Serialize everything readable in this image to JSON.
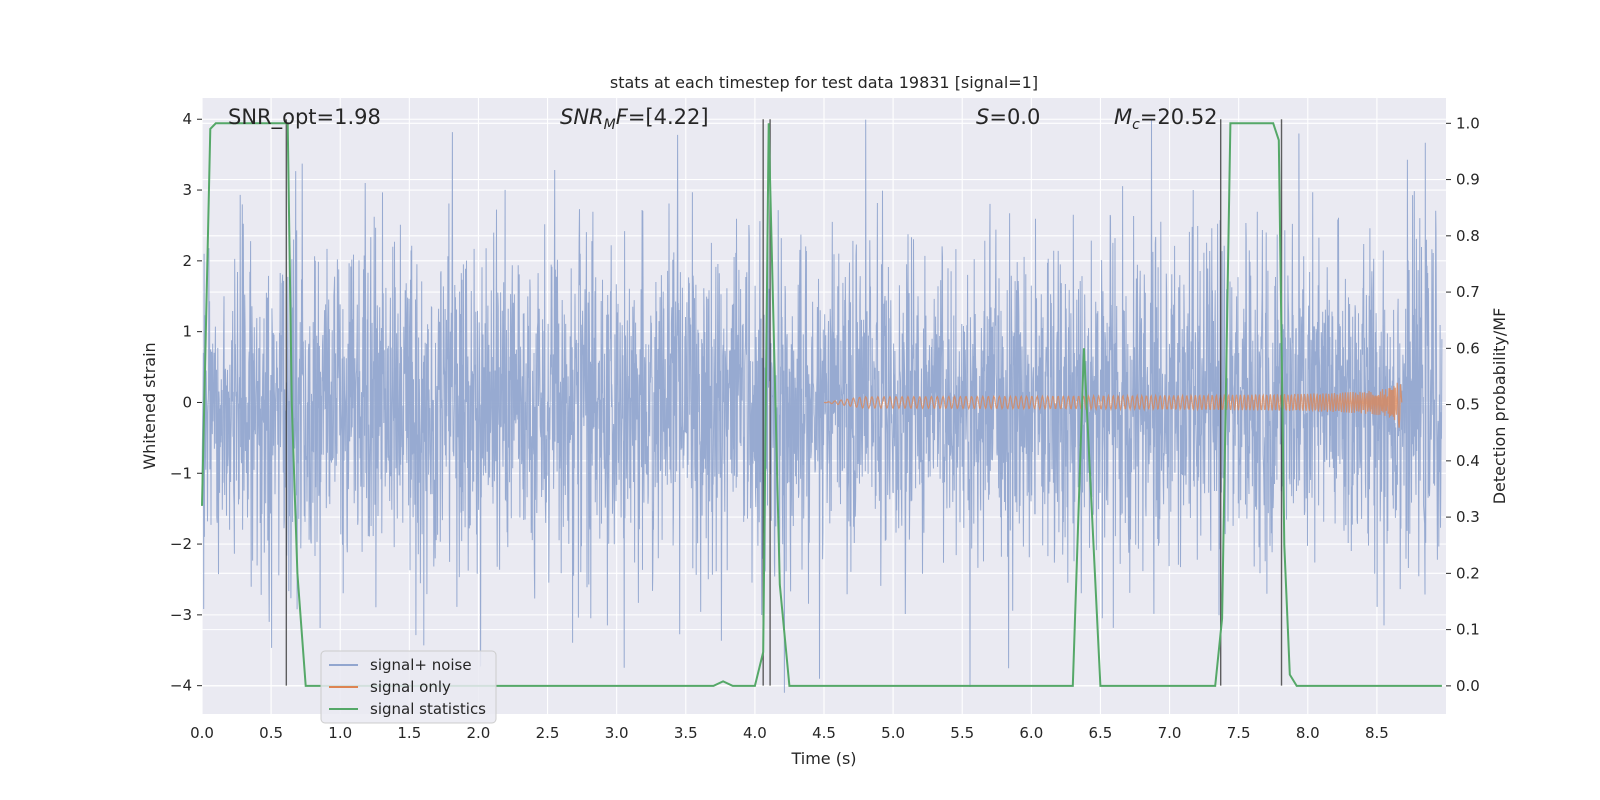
{
  "chart_data": {
    "type": "line",
    "title": "stats at each timestep for test data 19831 [signal=1]",
    "xlabel": "Time (s)",
    "ylabel": "Whitened strain",
    "ylabel_right": "Detection probability/MF",
    "xlim": [
      0,
      9
    ],
    "ylim": [
      -4.4,
      4.3
    ],
    "ylim_right": [
      -0.05,
      1.045
    ],
    "x_ticks": [
      0.0,
      0.5,
      1.0,
      1.5,
      2.0,
      2.5,
      3.0,
      3.5,
      4.0,
      4.5,
      5.0,
      5.5,
      6.0,
      6.5,
      7.0,
      7.5,
      8.0,
      8.5
    ],
    "x_tick_labels": [
      "0.0",
      "0.5",
      "1.0",
      "1.5",
      "2.0",
      "2.5",
      "3.0",
      "3.5",
      "4.0",
      "4.5",
      "5.0",
      "5.5",
      "6.0",
      "6.5",
      "7.0",
      "7.5",
      "8.0",
      "8.5"
    ],
    "y_ticks": [
      4,
      3,
      2,
      1,
      0,
      -1,
      -2,
      -3,
      -4
    ],
    "y_tick_labels": [
      "4",
      "3",
      "2",
      "1",
      "0",
      "−1",
      "−2",
      "−3",
      "−4"
    ],
    "y_ticks_right": [
      1.0,
      0.9,
      0.8,
      0.7,
      0.6,
      0.5,
      0.4,
      0.3,
      0.2,
      0.1,
      0.0
    ],
    "y_tick_labels_right": [
      "1.0",
      "0.9",
      "0.8",
      "0.7",
      "0.6",
      "0.5",
      "0.4",
      "0.3",
      "0.2",
      "0.1",
      "0.0"
    ],
    "grid": true,
    "legend_position": "lower-left",
    "annotations": {
      "snr_opt": "SNR_opt=1.98",
      "snr_mf": "=[4.22]",
      "s_stat": "=0.0",
      "mc": "=20.52"
    },
    "annotation_symbols": {
      "snr_mf_main": "SNR",
      "snr_mf_sub": "M",
      "snr_mf_tail": "F",
      "s_main": "S",
      "mc_main": "M",
      "mc_sub": "c"
    },
    "series": [
      {
        "name": "signal+ noise",
        "color": "#92a6cf",
        "style": "dense noise, approx. ±1.6 band with spikes to ±4"
      },
      {
        "name": "signal only",
        "color": "#dd8452",
        "chirp": {
          "t_start": 4.5,
          "t_merger": 8.67,
          "peak_amplitude": 0.45
        }
      },
      {
        "name": "signal statistics",
        "color": "#55a868",
        "axis": "right",
        "x": [
          0.0,
          0.06,
          0.1,
          0.6,
          0.62,
          0.65,
          0.69,
          0.75,
          3.7,
          3.77,
          3.84,
          4.0,
          4.06,
          4.1,
          4.18,
          4.25,
          6.3,
          6.38,
          6.5,
          7.33,
          7.38,
          7.44,
          7.75,
          7.79,
          7.83,
          7.87,
          7.92,
          8.0,
          8.97
        ],
        "y": [
          0.32,
          0.99,
          1.0,
          1.0,
          1.0,
          0.5,
          0.2,
          0.0,
          0.0,
          0.008,
          0.0,
          0.0,
          0.06,
          1.0,
          0.18,
          0.0,
          0.0,
          0.6,
          0.0,
          0.0,
          0.12,
          1.0,
          1.0,
          0.97,
          0.25,
          0.02,
          0.0,
          0.0,
          0.0
        ]
      }
    ],
    "vertical_lines": [
      0.61,
      4.06,
      4.11,
      7.37,
      7.81
    ]
  }
}
